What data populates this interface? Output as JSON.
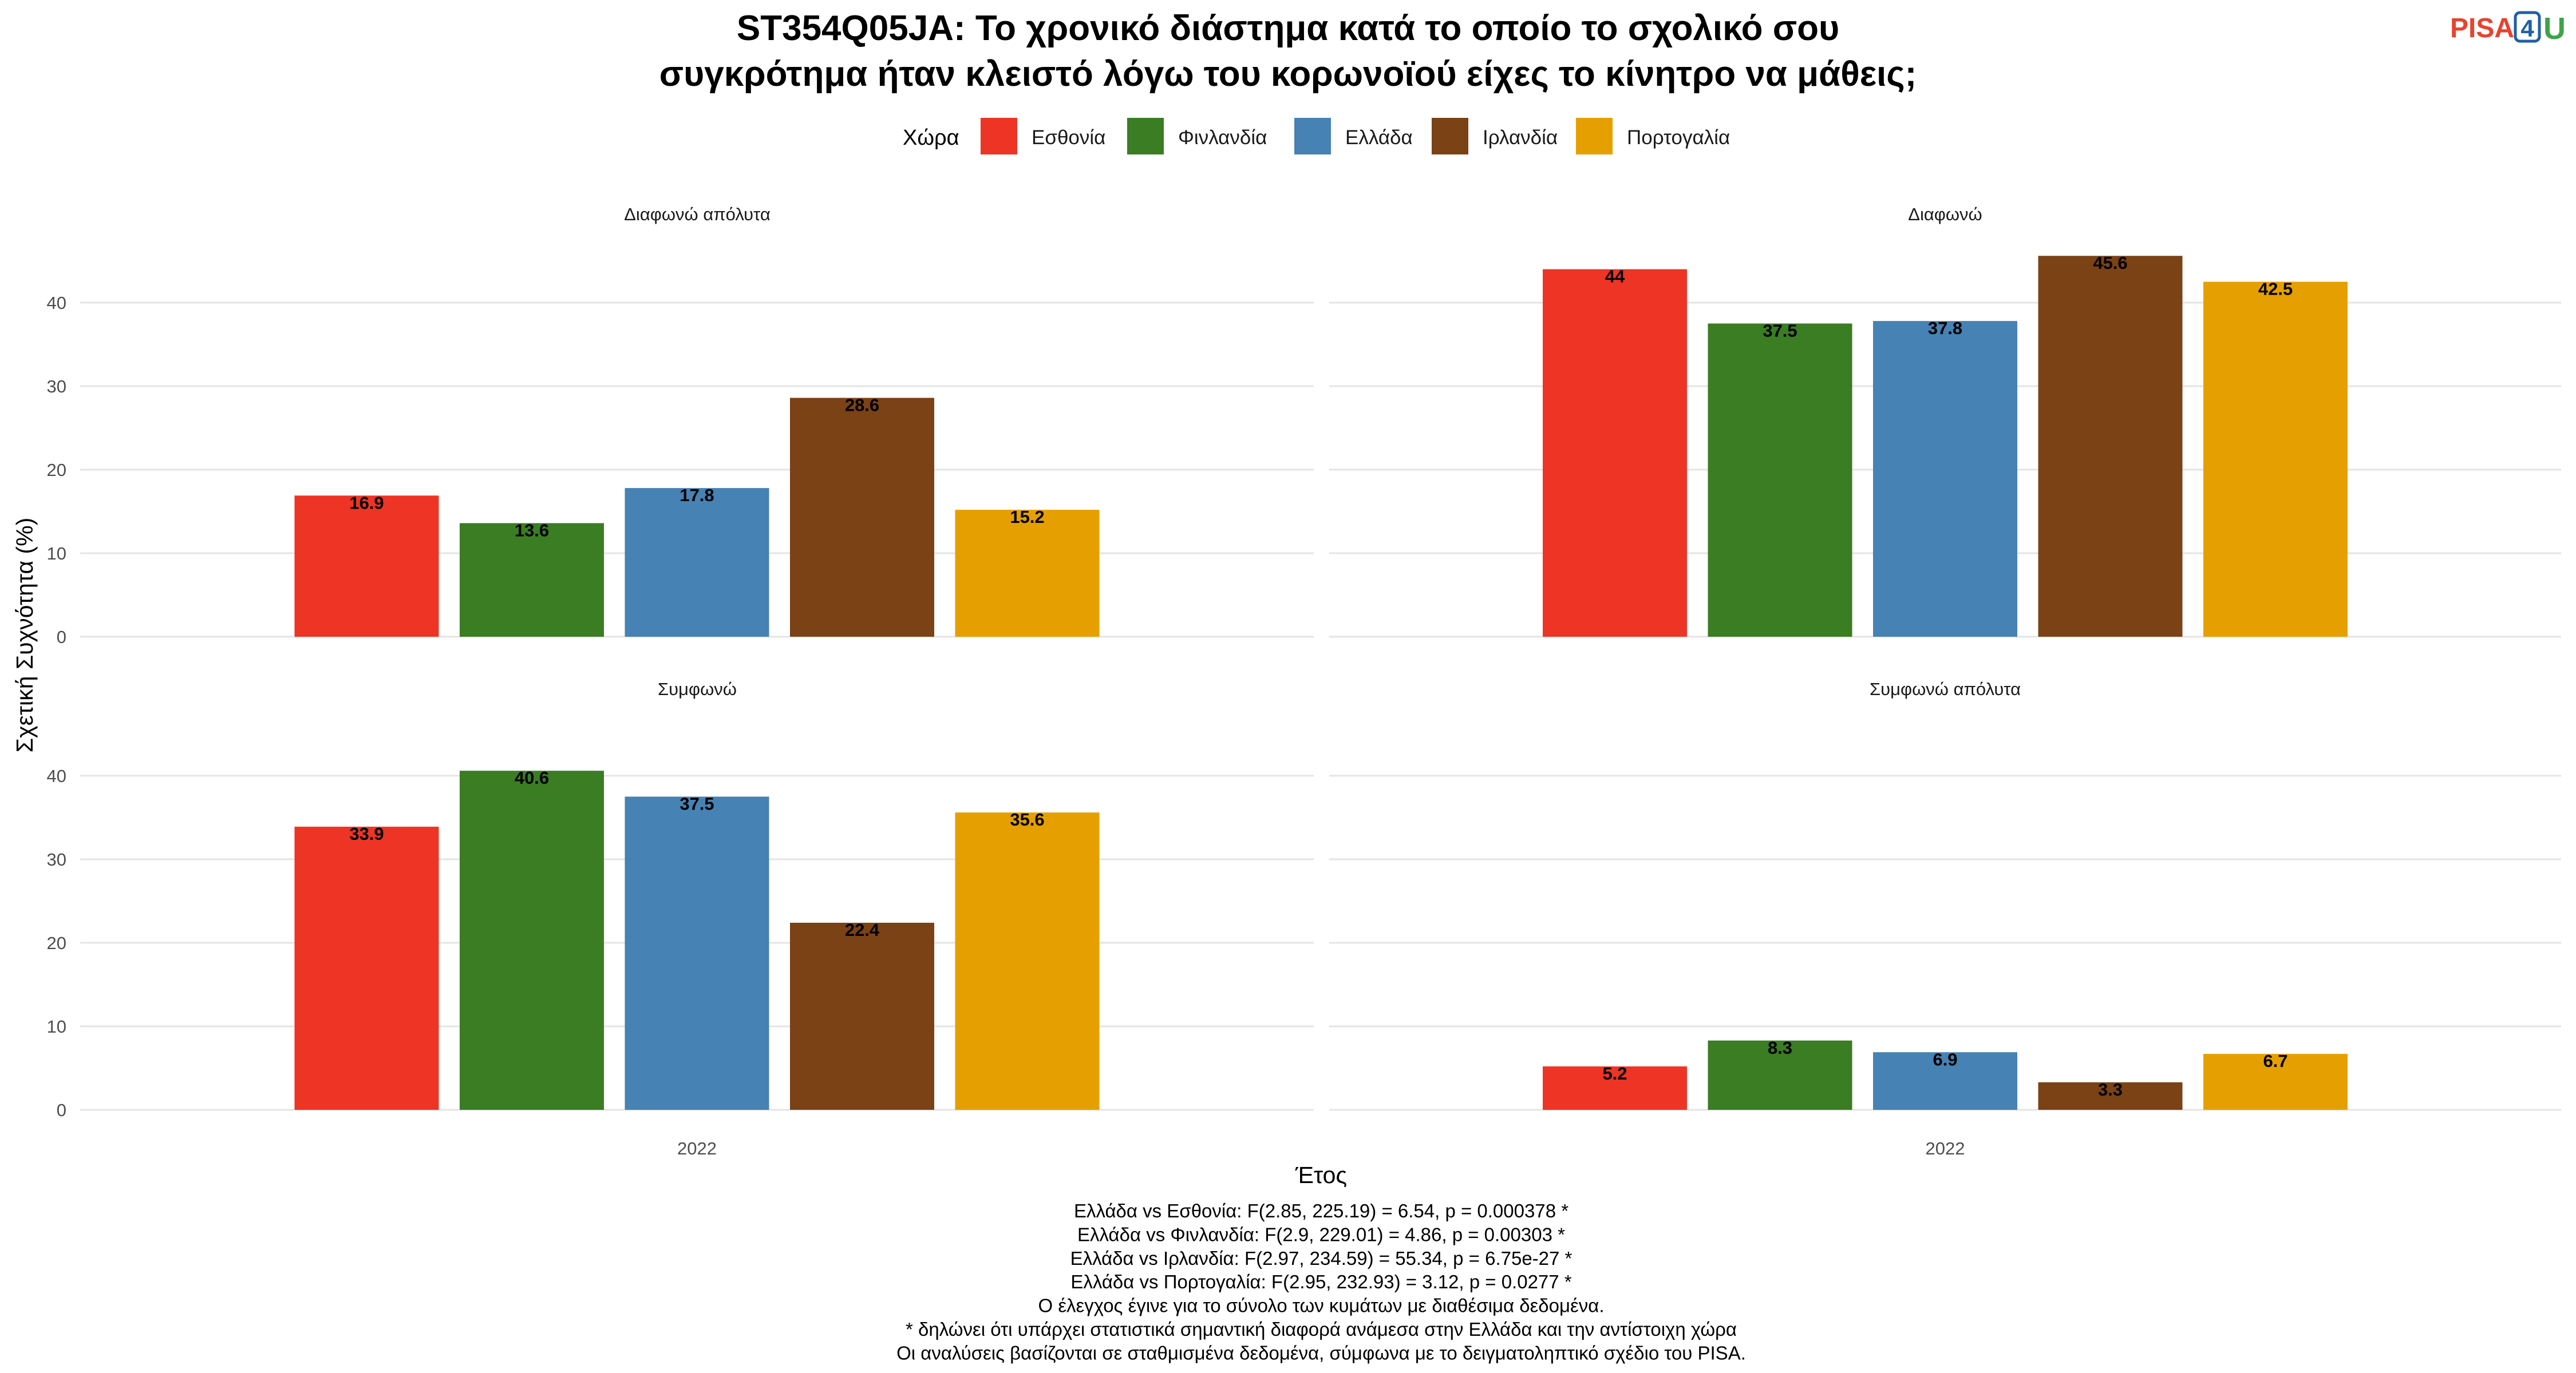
{
  "title_lines": [
    "ST354Q05JA: Το χρονικό διάστημα κατά το οποίο το σχολικό σου",
    "συγκρότημα ήταν κλειστό λόγω του κορωνοϊού είχες το κίνητρο να μάθεις;"
  ],
  "logo": {
    "text_main": "PISA",
    "text_num": "4",
    "text_u": "U",
    "colors": {
      "main": "#e8432d",
      "num": "#1f5fa8",
      "u": "#3da447"
    }
  },
  "legend": {
    "title": "Χώρα",
    "placement": "top-center",
    "items": [
      {
        "label": "Εσθονία",
        "color": "#ee3424"
      },
      {
        "label": "Φινλανδία",
        "color": "#3a7d23"
      },
      {
        "label": "Ελλάδα",
        "color": "#4682b4"
      },
      {
        "label": "Ιρλανδία",
        "color": "#7b4216"
      },
      {
        "label": "Πορτογαλία",
        "color": "#e5a000"
      }
    ]
  },
  "chart_data": {
    "type": "bar",
    "xlabel": "Έτος",
    "ylabel": "Σχετική Συχνότητα (%)",
    "ylim": [
      0,
      48
    ],
    "yticks": [
      0,
      10,
      20,
      30,
      40
    ],
    "grid": true,
    "categories": [
      "2022"
    ],
    "series_names": [
      "Εσθονία",
      "Φινλανδία",
      "Ελλάδα",
      "Ιρλανδία",
      "Πορτογαλία"
    ],
    "facets": [
      {
        "title": "Διαφωνώ απόλυτα",
        "values": [
          16.9,
          13.6,
          17.8,
          28.6,
          15.2
        ],
        "labels": [
          "16.9",
          "13.6",
          "17.8",
          "28.6",
          "15.2"
        ]
      },
      {
        "title": "Διαφωνώ",
        "values": [
          44,
          37.5,
          37.8,
          45.6,
          42.5
        ],
        "labels": [
          "44",
          "37.5",
          "37.8",
          "45.6",
          "42.5"
        ]
      },
      {
        "title": "Συμφωνώ",
        "values": [
          33.9,
          40.6,
          37.5,
          22.4,
          35.6
        ],
        "labels": [
          "33.9",
          "40.6",
          "37.5",
          "22.4",
          "35.6"
        ]
      },
      {
        "title": "Συμφωνώ απόλυτα",
        "values": [
          5.2,
          8.3,
          6.9,
          3.3,
          6.7
        ],
        "labels": [
          "5.2",
          "8.3",
          "6.9",
          "3.3",
          "6.7"
        ]
      }
    ]
  },
  "footnotes": [
    "Ελλάδα vs Εσθονία: F(2.85, 225.19) = 6.54, p = 0.000378 *",
    "Ελλάδα vs Φινλανδία: F(2.9, 229.01) = 4.86, p = 0.00303 *",
    "Ελλάδα vs Ιρλανδία: F(2.97, 234.59) = 55.34, p = 6.75e-27 *",
    "Ελλάδα vs Πορτογαλία: F(2.95, 232.93) = 3.12, p = 0.0277 *",
    "Ο έλεγχος έγινε για το σύνολο των κυμάτων με διαθέσιμα δεδομένα.",
    "* δηλώνει ότι υπάρχει στατιστικά σημαντική διαφορά ανάμεσα στην Ελλάδα και την αντίστοιχη χώρα",
    "Οι αναλύσεις βασίζονται σε σταθμισμένα δεδομένα, σύμφωνα με το δειγματοληπτικό σχέδιο του PISA."
  ]
}
